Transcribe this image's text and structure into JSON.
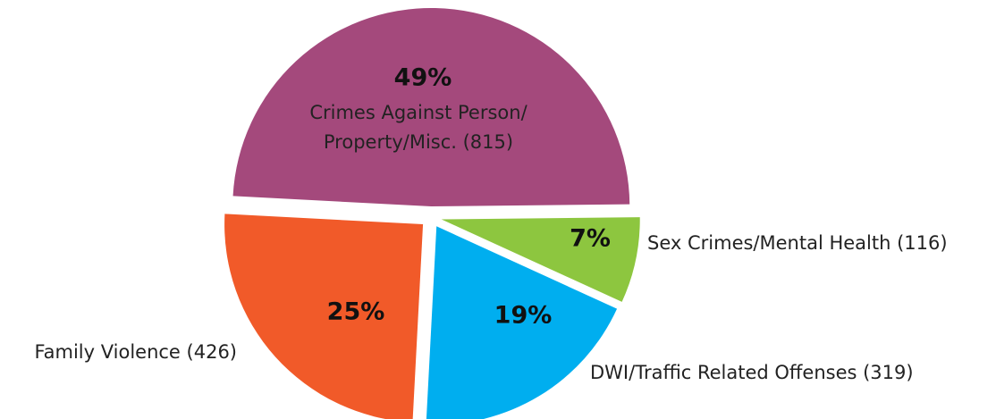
{
  "chart_data": {
    "type": "pie",
    "categories": [
      "Crimes Against Person/ Property/Misc. (815)",
      "Sex Crimes/Mental Health (116)",
      "DWI/Traffic Related Offenses (319)",
      "Family Violence (426)"
    ],
    "values": [
      49,
      7,
      19,
      25
    ],
    "value_labels": [
      "49%",
      "7%",
      "19%",
      "25%"
    ],
    "colors": [
      "#a4497c",
      "#8dc63f",
      "#00aeef",
      "#f15a29"
    ]
  }
}
